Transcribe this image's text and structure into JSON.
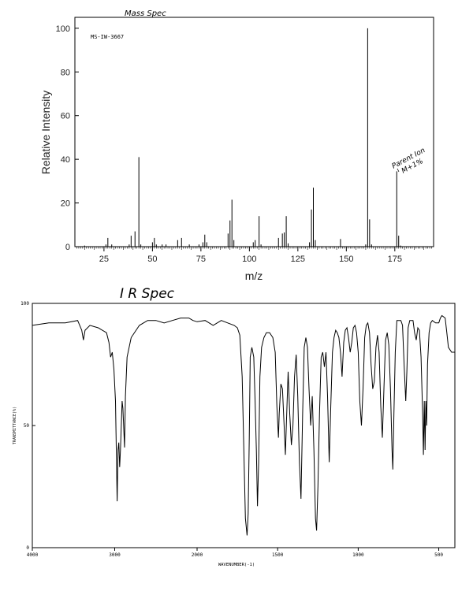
{
  "annotations": {
    "mass_spec_title": "Mass Spec",
    "ir_spec_title": "I R Spec",
    "parent_ion_line1": "Parent Ion",
    "parent_ion_line2": "M+1%"
  },
  "chart_data": [
    {
      "type": "bar",
      "title": "",
      "sample_id": "MS-IW-3667",
      "xlabel": "m/z",
      "ylabel": "Relative Intensity",
      "xlim": [
        10,
        195
      ],
      "ylim": [
        0,
        105
      ],
      "x_ticks": [
        25,
        50,
        75,
        100,
        125,
        150,
        175
      ],
      "y_ticks": [
        0,
        20,
        40,
        60,
        80,
        100
      ],
      "grid": false,
      "peaks": [
        {
          "x": 15,
          "y": 0.5
        },
        {
          "x": 26,
          "y": 1
        },
        {
          "x": 27,
          "y": 4
        },
        {
          "x": 29,
          "y": 1
        },
        {
          "x": 38,
          "y": 1
        },
        {
          "x": 39,
          "y": 5
        },
        {
          "x": 41,
          "y": 7
        },
        {
          "x": 43,
          "y": 41
        },
        {
          "x": 44,
          "y": 1
        },
        {
          "x": 50,
          "y": 2
        },
        {
          "x": 51,
          "y": 4
        },
        {
          "x": 52,
          "y": 1
        },
        {
          "x": 55,
          "y": 1
        },
        {
          "x": 57,
          "y": 1
        },
        {
          "x": 63,
          "y": 3
        },
        {
          "x": 65,
          "y": 4
        },
        {
          "x": 69,
          "y": 1
        },
        {
          "x": 74,
          "y": 1
        },
        {
          "x": 76,
          "y": 2
        },
        {
          "x": 77,
          "y": 5.5
        },
        {
          "x": 78,
          "y": 2
        },
        {
          "x": 89,
          "y": 6
        },
        {
          "x": 90,
          "y": 12
        },
        {
          "x": 91,
          "y": 21.5
        },
        {
          "x": 92,
          "y": 3
        },
        {
          "x": 102,
          "y": 2
        },
        {
          "x": 103,
          "y": 3
        },
        {
          "x": 105,
          "y": 14
        },
        {
          "x": 106,
          "y": 1
        },
        {
          "x": 115,
          "y": 4
        },
        {
          "x": 117,
          "y": 6
        },
        {
          "x": 118,
          "y": 6.5
        },
        {
          "x": 119,
          "y": 14
        },
        {
          "x": 120,
          "y": 1.5
        },
        {
          "x": 131,
          "y": 2
        },
        {
          "x": 132,
          "y": 17
        },
        {
          "x": 133,
          "y": 27
        },
        {
          "x": 134,
          "y": 3
        },
        {
          "x": 147,
          "y": 3.5
        },
        {
          "x": 160,
          "y": 1
        },
        {
          "x": 161,
          "y": 100
        },
        {
          "x": 162,
          "y": 12.5
        },
        {
          "x": 163,
          "y": 1
        },
        {
          "x": 176,
          "y": 34.5
        },
        {
          "x": 177,
          "y": 5
        },
        {
          "x": 178,
          "y": 0.5
        }
      ]
    },
    {
      "type": "line",
      "title": "",
      "xlabel": "WAVENUMBER(-1)",
      "ylabel": "TRANSMITTANCE(%)",
      "xlim": [
        4000,
        400
      ],
      "ylim": [
        0,
        100
      ],
      "x_ticks": [
        4000,
        3000,
        2000,
        1500,
        1000,
        500
      ],
      "y_ticks": [
        0,
        50,
        100
      ],
      "x_scale": "linear-in-two-segments",
      "grid": false,
      "series": [
        {
          "points": [
            [
              4000,
              91
            ],
            [
              3800,
              92
            ],
            [
              3600,
              92
            ],
            [
              3450,
              93
            ],
            [
              3400,
              89
            ],
            [
              3380,
              85
            ],
            [
              3360,
              89
            ],
            [
              3300,
              91
            ],
            [
              3200,
              90
            ],
            [
              3100,
              88
            ],
            [
              3070,
              84
            ],
            [
              3050,
              78
            ],
            [
              3030,
              80
            ],
            [
              3010,
              73
            ],
            [
              2990,
              60
            ],
            [
              2970,
              19
            ],
            [
              2960,
              40
            ],
            [
              2950,
              43
            ],
            [
              2940,
              33
            ],
            [
              2930,
              40
            ],
            [
              2910,
              60
            ],
            [
              2900,
              57
            ],
            [
              2880,
              41
            ],
            [
              2870,
              62
            ],
            [
              2850,
              78
            ],
            [
              2800,
              86
            ],
            [
              2700,
              91
            ],
            [
              2600,
              93
            ],
            [
              2500,
              93
            ],
            [
              2400,
              92
            ],
            [
              2300,
              93
            ],
            [
              2200,
              94
            ],
            [
              2100,
              94
            ],
            [
              2050,
              93
            ],
            [
              2000,
              92.5
            ],
            [
              1950,
              93
            ],
            [
              1900,
              91
            ],
            [
              1850,
              93
            ],
            [
              1810,
              92
            ],
            [
              1770,
              91
            ],
            [
              1750,
              90
            ],
            [
              1735,
              87
            ],
            [
              1720,
              70
            ],
            [
              1710,
              40
            ],
            [
              1700,
              12
            ],
            [
              1690,
              5
            ],
            [
              1683,
              14
            ],
            [
              1676,
              45
            ],
            [
              1670,
              78
            ],
            [
              1660,
              82
            ],
            [
              1648,
              78
            ],
            [
              1640,
              60
            ],
            [
              1632,
              40
            ],
            [
              1625,
              17
            ],
            [
              1618,
              35
            ],
            [
              1610,
              70
            ],
            [
              1600,
              82
            ],
            [
              1585,
              86
            ],
            [
              1570,
              88
            ],
            [
              1550,
              88
            ],
            [
              1530,
              86
            ],
            [
              1515,
              80
            ],
            [
              1505,
              58
            ],
            [
              1495,
              45
            ],
            [
              1490,
              55
            ],
            [
              1480,
              67
            ],
            [
              1470,
              65
            ],
            [
              1460,
              50
            ],
            [
              1452,
              38
            ],
            [
              1445,
              52
            ],
            [
              1435,
              72
            ],
            [
              1425,
              55
            ],
            [
              1415,
              42
            ],
            [
              1405,
              50
            ],
            [
              1395,
              70
            ],
            [
              1385,
              79
            ],
            [
              1375,
              62
            ],
            [
              1365,
              35
            ],
            [
              1355,
              20
            ],
            [
              1345,
              55
            ],
            [
              1335,
              82
            ],
            [
              1325,
              86
            ],
            [
              1315,
              82
            ],
            [
              1305,
              65
            ],
            [
              1295,
              50
            ],
            [
              1285,
              62
            ],
            [
              1275,
              40
            ],
            [
              1265,
              12
            ],
            [
              1258,
              7
            ],
            [
              1250,
              25
            ],
            [
              1240,
              55
            ],
            [
              1230,
              78
            ],
            [
              1220,
              80
            ],
            [
              1210,
              74
            ],
            [
              1200,
              80
            ],
            [
              1190,
              62
            ],
            [
              1180,
              35
            ],
            [
              1170,
              58
            ],
            [
              1160,
              80
            ],
            [
              1150,
              86
            ],
            [
              1140,
              89
            ],
            [
              1130,
              88
            ],
            [
              1120,
              86
            ],
            [
              1110,
              80
            ],
            [
              1100,
              70
            ],
            [
              1090,
              84
            ],
            [
              1080,
              89
            ],
            [
              1070,
              90
            ],
            [
              1060,
              86
            ],
            [
              1050,
              80
            ],
            [
              1040,
              84
            ],
            [
              1030,
              90
            ],
            [
              1020,
              91
            ],
            [
              1010,
              88
            ],
            [
              1000,
              80
            ],
            [
              990,
              60
            ],
            [
              980,
              50
            ],
            [
              970,
              65
            ],
            [
              960,
              86
            ],
            [
              950,
              91
            ],
            [
              940,
              92
            ],
            [
              930,
              88
            ],
            [
              920,
              75
            ],
            [
              910,
              65
            ],
            [
              900,
              68
            ],
            [
              890,
              82
            ],
            [
              880,
              87
            ],
            [
              870,
              80
            ],
            [
              860,
              58
            ],
            [
              850,
              45
            ],
            [
              840,
              66
            ],
            [
              830,
              85
            ],
            [
              820,
              88
            ],
            [
              810,
              83
            ],
            [
              800,
              65
            ],
            [
              790,
              40
            ],
            [
              785,
              32
            ],
            [
              778,
              55
            ],
            [
              770,
              80
            ],
            [
              760,
              93
            ],
            [
              745,
              93
            ],
            [
              735,
              93
            ],
            [
              725,
              91
            ],
            [
              715,
              75
            ],
            [
              705,
              60
            ],
            [
              698,
              72
            ],
            [
              690,
              90
            ],
            [
              680,
              93
            ],
            [
              670,
              93
            ],
            [
              660,
              93
            ],
            [
              650,
              88
            ],
            [
              640,
              85
            ],
            [
              630,
              90
            ],
            [
              620,
              89
            ],
            [
              610,
              78
            ],
            [
              600,
              55
            ],
            [
              595,
              38
            ],
            [
              590,
              60
            ],
            [
              585,
              40
            ],
            [
              580,
              60
            ],
            [
              575,
              50
            ],
            [
              570,
              75
            ],
            [
              560,
              88
            ],
            [
              550,
              92
            ],
            [
              540,
              93
            ],
            [
              520,
              92
            ],
            [
              500,
              92
            ],
            [
              490,
              94
            ],
            [
              480,
              95
            ],
            [
              460,
              94
            ],
            [
              450,
              88
            ],
            [
              440,
              82
            ],
            [
              420,
              80
            ],
            [
              400,
              80
            ]
          ]
        }
      ]
    }
  ]
}
